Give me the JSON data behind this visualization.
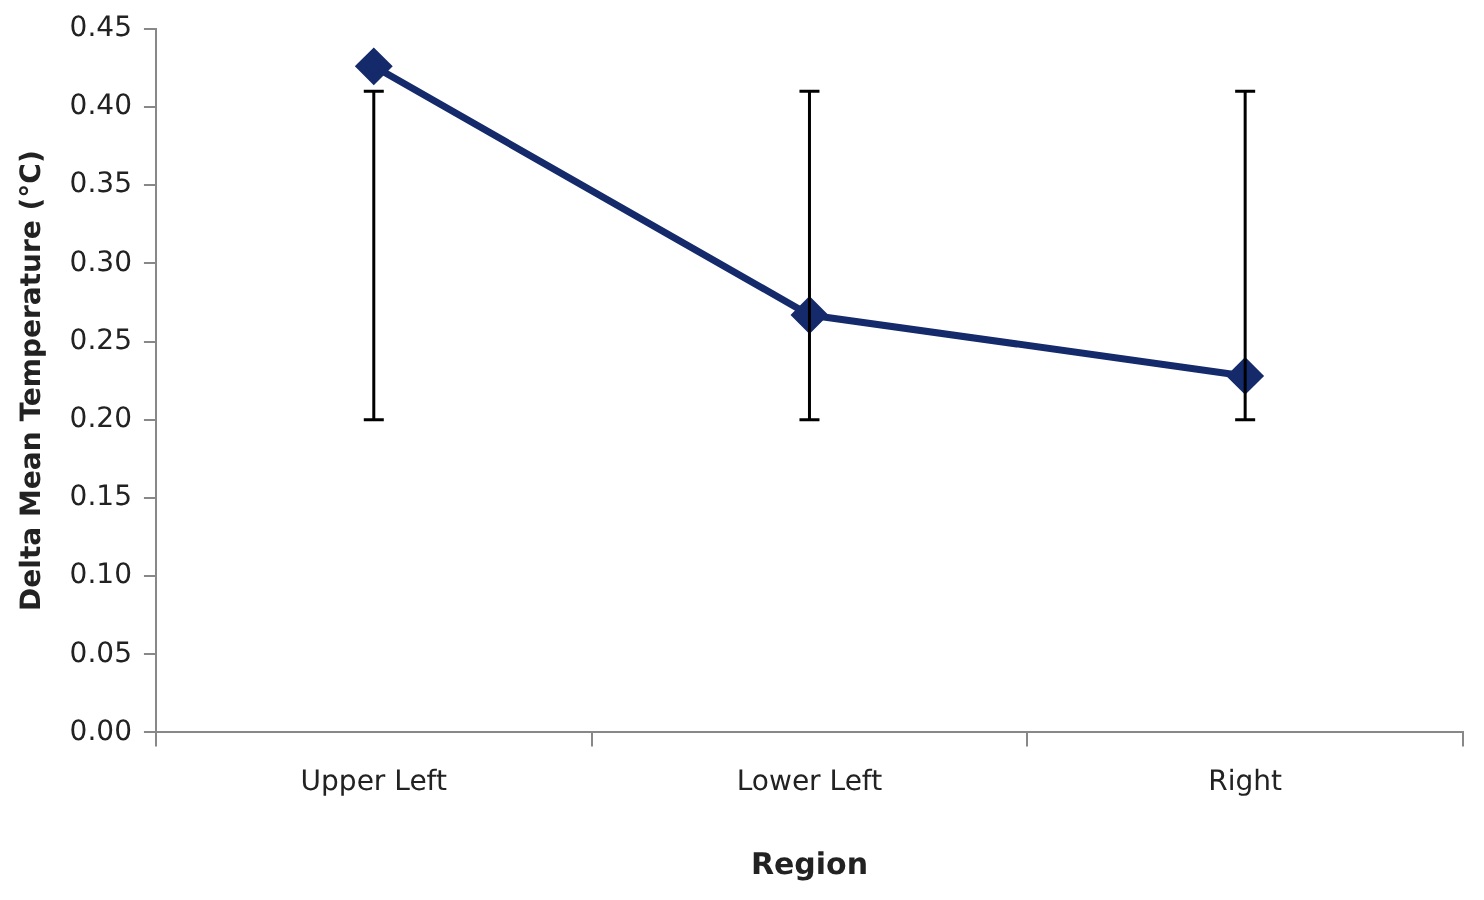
{
  "chart_data": {
    "type": "line",
    "xlabel": "Region",
    "ylabel": "Delta Mean Temperature (°C)",
    "categories": [
      "Upper Left",
      "Lower Left",
      "Right"
    ],
    "series": [
      {
        "color": "#142a6b",
        "values": [
          0.426,
          0.267,
          0.228
        ],
        "errors": [
          [
            0.2,
            0.41
          ],
          [
            0.2,
            0.41
          ],
          [
            0.2,
            0.41
          ]
        ]
      }
    ],
    "ylim": [
      0,
      0.45
    ],
    "yticks": [
      {
        "value": 0,
        "label": "0.00"
      },
      {
        "value": 0.05,
        "label": "0.05"
      },
      {
        "value": 0.1,
        "label": "0.10"
      },
      {
        "value": 0.15,
        "label": "0.15"
      },
      {
        "value": 0.2,
        "label": "0.20"
      },
      {
        "value": 0.25,
        "label": "0.25"
      },
      {
        "value": 0.3,
        "label": "0.30"
      },
      {
        "value": 0.35,
        "label": "0.35"
      },
      {
        "value": 0.4,
        "label": "0.40"
      },
      {
        "value": 0.45,
        "label": "0.45"
      }
    ],
    "marker": "diamond",
    "legend": false,
    "grid": false
  }
}
